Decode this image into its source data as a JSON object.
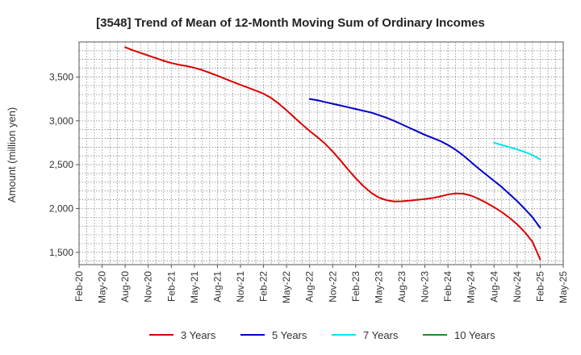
{
  "chart_data": {
    "type": "line",
    "title": "[3548]  Trend of Mean of 12-Month Moving Sum of Ordinary Incomes",
    "xlabel": "",
    "ylabel": "Amount (million yen)",
    "ylim": [
      1360,
      3900
    ],
    "yticks": [
      1500,
      2000,
      2500,
      3000,
      3500
    ],
    "ytick_labels": [
      "1,500",
      "2,000",
      "2,500",
      "3,000",
      "3,500"
    ],
    "xtick_labels": [
      "Feb-20",
      "May-20",
      "Aug-20",
      "Nov-20",
      "Feb-21",
      "May-21",
      "Aug-21",
      "Nov-21",
      "Feb-22",
      "May-22",
      "Aug-22",
      "Nov-22",
      "Feb-23",
      "May-23",
      "Aug-23",
      "Nov-23",
      "Feb-24",
      "May-24",
      "Aug-24",
      "Nov-24",
      "Feb-25",
      "May-25"
    ],
    "grid": true,
    "series": [
      {
        "name": "3 Years",
        "color": "#dd0000",
        "values": [
          [
            "Aug-20",
            3840
          ],
          [
            "Sep-20",
            3805
          ],
          [
            "Oct-20",
            3775
          ],
          [
            "Nov-20",
            3745
          ],
          [
            "Dec-20",
            3715
          ],
          [
            "Jan-21",
            3685
          ],
          [
            "Feb-21",
            3660
          ],
          [
            "Mar-21",
            3640
          ],
          [
            "Apr-21",
            3625
          ],
          [
            "May-21",
            3605
          ],
          [
            "Jun-21",
            3580
          ],
          [
            "Jul-21",
            3548
          ],
          [
            "Aug-21",
            3515
          ],
          [
            "Sep-21",
            3480
          ],
          [
            "Oct-21",
            3445
          ],
          [
            "Nov-21",
            3410
          ],
          [
            "Dec-21",
            3378
          ],
          [
            "Jan-22",
            3345
          ],
          [
            "Feb-22",
            3310
          ],
          [
            "Mar-22",
            3260
          ],
          [
            "Apr-22",
            3195
          ],
          [
            "May-22",
            3120
          ],
          [
            "Jun-22",
            3040
          ],
          [
            "Jul-22",
            2960
          ],
          [
            "Aug-22",
            2885
          ],
          [
            "Sep-22",
            2815
          ],
          [
            "Oct-22",
            2740
          ],
          [
            "Nov-22",
            2650
          ],
          [
            "Dec-22",
            2550
          ],
          [
            "Jan-23",
            2445
          ],
          [
            "Feb-23",
            2345
          ],
          [
            "Mar-23",
            2255
          ],
          [
            "Apr-23",
            2180
          ],
          [
            "May-23",
            2125
          ],
          [
            "Jun-23",
            2095
          ],
          [
            "Jul-23",
            2080
          ],
          [
            "Aug-23",
            2082
          ],
          [
            "Sep-23",
            2090
          ],
          [
            "Oct-23",
            2100
          ],
          [
            "Nov-23",
            2108
          ],
          [
            "Dec-23",
            2120
          ],
          [
            "Jan-24",
            2138
          ],
          [
            "Feb-24",
            2160
          ],
          [
            "Mar-24",
            2172
          ],
          [
            "Apr-24",
            2170
          ],
          [
            "May-24",
            2148
          ],
          [
            "Jun-24",
            2110
          ],
          [
            "Jul-24",
            2065
          ],
          [
            "Aug-24",
            2015
          ],
          [
            "Sep-24",
            1960
          ],
          [
            "Oct-24",
            1895
          ],
          [
            "Nov-24",
            1820
          ],
          [
            "Dec-24",
            1730
          ],
          [
            "Jan-25",
            1620
          ],
          [
            "Feb-25",
            1420
          ]
        ]
      },
      {
        "name": "5 Years",
        "color": "#0000cc",
        "values": [
          [
            "Aug-22",
            3250
          ],
          [
            "Sep-22",
            3235
          ],
          [
            "Oct-22",
            3215
          ],
          [
            "Nov-22",
            3195
          ],
          [
            "Dec-22",
            3175
          ],
          [
            "Jan-23",
            3155
          ],
          [
            "Feb-23",
            3135
          ],
          [
            "Mar-23",
            3115
          ],
          [
            "Apr-23",
            3095
          ],
          [
            "May-23",
            3065
          ],
          [
            "Jun-23",
            3035
          ],
          [
            "Jul-23",
            3000
          ],
          [
            "Aug-23",
            2960
          ],
          [
            "Sep-23",
            2920
          ],
          [
            "Oct-23",
            2880
          ],
          [
            "Nov-23",
            2840
          ],
          [
            "Dec-23",
            2805
          ],
          [
            "Jan-24",
            2770
          ],
          [
            "Feb-24",
            2725
          ],
          [
            "Mar-24",
            2670
          ],
          [
            "Apr-24",
            2605
          ],
          [
            "May-24",
            2530
          ],
          [
            "Jun-24",
            2455
          ],
          [
            "Jul-24",
            2385
          ],
          [
            "Aug-24",
            2315
          ],
          [
            "Sep-24",
            2245
          ],
          [
            "Oct-24",
            2165
          ],
          [
            "Nov-24",
            2085
          ],
          [
            "Dec-24",
            1995
          ],
          [
            "Jan-25",
            1900
          ],
          [
            "Feb-25",
            1780
          ]
        ]
      },
      {
        "name": "7 Years",
        "color": "#00e5ee",
        "values": [
          [
            "Aug-24",
            2750
          ],
          [
            "Sep-24",
            2725
          ],
          [
            "Oct-24",
            2700
          ],
          [
            "Nov-24",
            2675
          ],
          [
            "Dec-24",
            2645
          ],
          [
            "Jan-25",
            2610
          ],
          [
            "Feb-25",
            2560
          ]
        ]
      },
      {
        "name": "10 Years",
        "color": "#228b22",
        "values": []
      }
    ]
  }
}
